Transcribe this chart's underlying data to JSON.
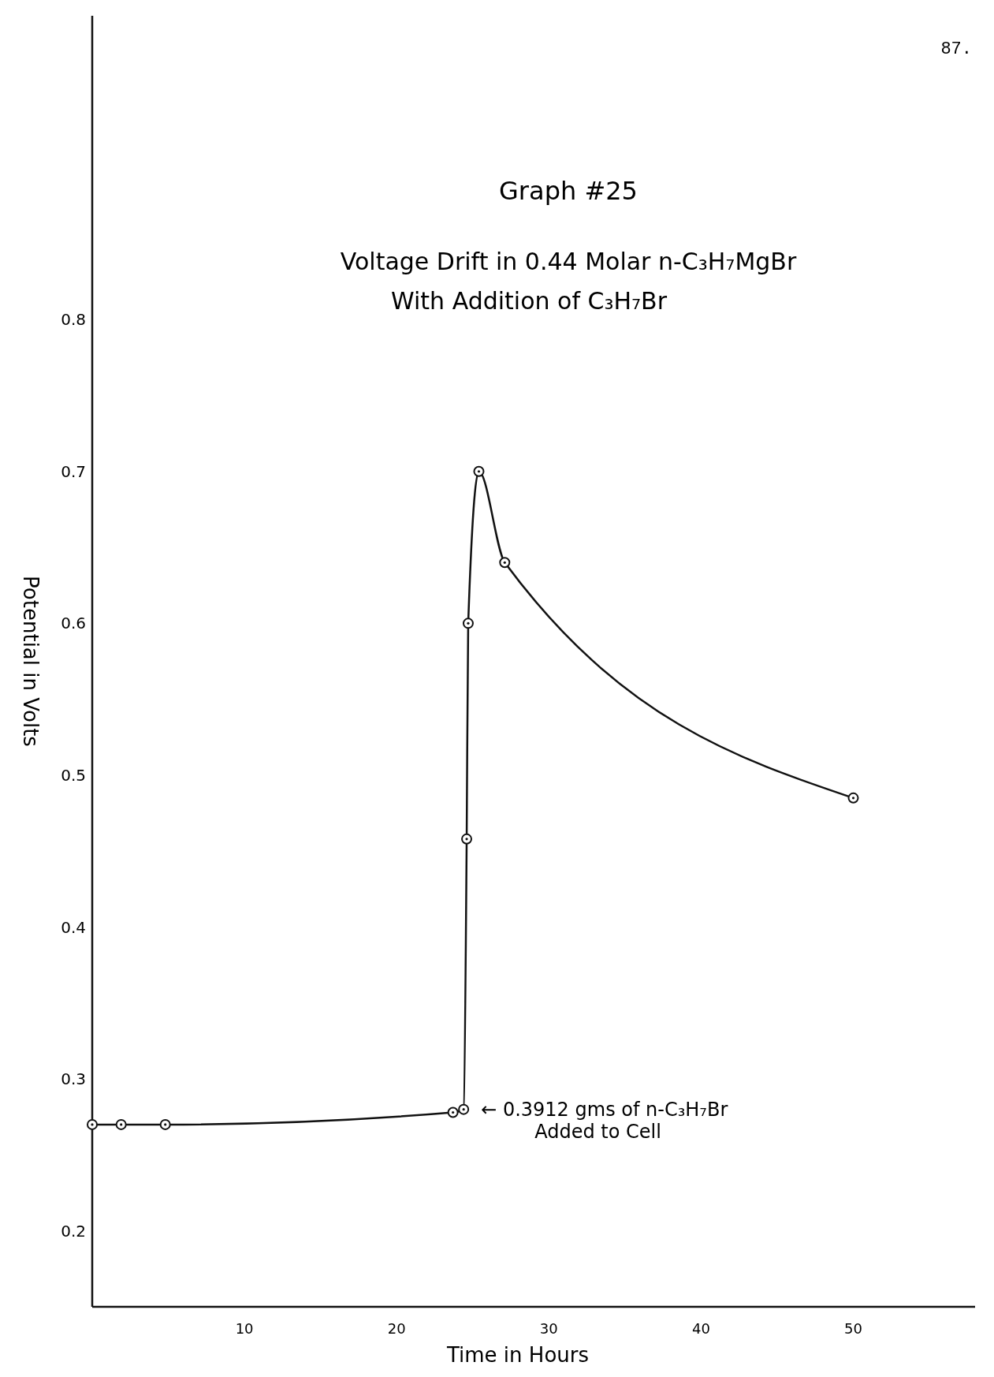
{
  "chart_data": {
    "type": "line",
    "title": "Graph #25",
    "subtitle": "Voltage Drift in 0.44 Molar n-C₃H₇MgBr\nWith Addition of C₃H₇Br",
    "xlabel": "Time in Hours",
    "ylabel": "Potential in Volts",
    "annotations": [
      "87.",
      {
        "text": "← 0.3912 gms of n-C₃H₇Br\nAdded to Cell",
        "x": 24.4,
        "y": 0.28
      }
    ],
    "x": [
      0,
      1.9,
      4.8,
      23.7,
      24.4,
      24.6,
      24.7,
      25.4,
      27.1,
      50
    ],
    "series": [
      {
        "color": "#111111",
        "values": [
          0.27,
          0.27,
          0.27,
          0.278,
          0.28,
          0.458,
          0.6,
          0.7,
          0.64,
          0.485
        ]
      }
    ],
    "xlim": [
      0,
      58
    ],
    "ylim": [
      0.15,
      1.0
    ],
    "xticks": [
      10,
      20,
      30,
      40,
      50
    ],
    "yticks": [
      0.2,
      0.3,
      0.4,
      0.5,
      0.6,
      0.7,
      0.8
    ],
    "grid": false,
    "marker": "circle",
    "line_style": "solid"
  }
}
